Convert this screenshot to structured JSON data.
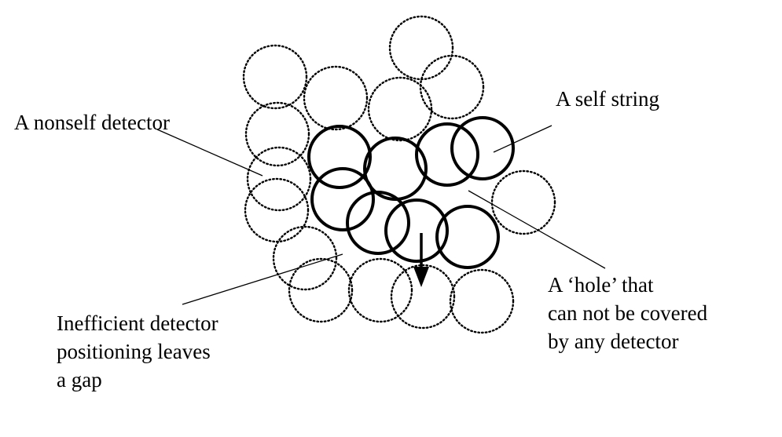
{
  "labels": {
    "nonself_detector": "A nonself detector",
    "self_string": "A self string",
    "hole": [
      "A ‘hole’ that",
      "can not be covered",
      "by any detector"
    ],
    "gap": [
      "Inefficient detector",
      "positioning leaves",
      "a gap"
    ]
  },
  "colors": {
    "stroke": "#000000",
    "background": "#ffffff"
  }
}
